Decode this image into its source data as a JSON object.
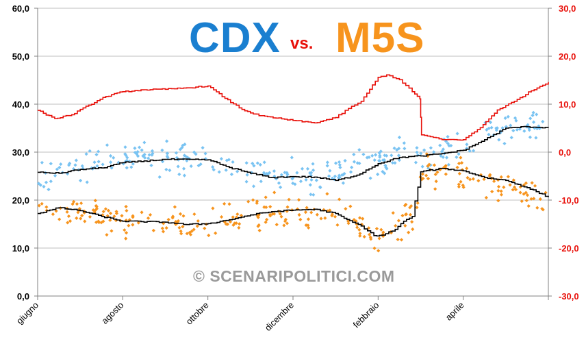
{
  "title": {
    "left": "CDX",
    "middle": "vs.",
    "right": "M5S"
  },
  "watermark": "© SCENARIPOLITICI.COM",
  "colors": {
    "cdx_points": "#79c3f2",
    "m5s_points": "#f7941d",
    "trend": "#000000",
    "diff": "#e8100a",
    "cdx_title": "#1a7fd0",
    "m5s_title": "#f7941d"
  },
  "chart_data": {
    "type": "scatter",
    "x_categories": [
      "giugno",
      "agosto",
      "ottobre",
      "dicembre",
      "febbraio",
      "aprile"
    ],
    "left_axis": {
      "ylim": [
        0,
        60
      ],
      "ticks": [
        "0,0",
        "10,0",
        "20,0",
        "30,0",
        "40,0",
        "50,0",
        "60,0"
      ]
    },
    "right_axis": {
      "ylim": [
        -30,
        30
      ],
      "ticks": [
        "-30,0",
        "-20,0",
        "-10,0",
        "0,0",
        "10,0",
        "20,0",
        "30,0"
      ]
    },
    "grid": true,
    "x_range_months": [
      0,
      12
    ],
    "series": [
      {
        "kind": "line",
        "axis": "left",
        "x": [
          0,
          0.5,
          1,
          1.5,
          2,
          3,
          4,
          4.5,
          5,
          5.5,
          6,
          6.5,
          7,
          7.5,
          8,
          8.5,
          9,
          9.5,
          10,
          10.5,
          11,
          11.5,
          12
        ],
        "y": [
          25.8,
          25.6,
          26.4,
          26.7,
          27.8,
          28.5,
          28.4,
          26.8,
          25.6,
          24.7,
          24.9,
          24.8,
          24.1,
          25.2,
          27.6,
          28.9,
          29.2,
          29.7,
          30.4,
          32.6,
          35.0,
          35.3,
          35.1
        ]
      },
      {
        "kind": "line",
        "axis": "left",
        "x": [
          0,
          0.5,
          1,
          1.5,
          2,
          3,
          3.5,
          4,
          4.5,
          5,
          5.5,
          6,
          6.5,
          7,
          7.2,
          7.6,
          7.9,
          8.1,
          8.4,
          8.6,
          8.8,
          9,
          9.5,
          10,
          10.5,
          11,
          11.5,
          12
        ],
        "y": [
          17.2,
          18.4,
          17.8,
          16.6,
          15.6,
          15.4,
          14.9,
          15.1,
          15.9,
          16.9,
          17.6,
          17.9,
          18.1,
          17.2,
          16.2,
          14.6,
          12.6,
          12.7,
          13.9,
          15.6,
          16.6,
          25.9,
          26.6,
          26.1,
          24.7,
          24.1,
          22.6,
          20.6
        ]
      },
      {
        "kind": "line",
        "axis": "right",
        "x": [
          0,
          0.4,
          0.8,
          1.2,
          1.6,
          2,
          2.5,
          3,
          3.5,
          4,
          4.4,
          4.8,
          5.2,
          5.6,
          6,
          6.5,
          7,
          7.3,
          7.6,
          7.8,
          8,
          8.2,
          8.5,
          8.8,
          8.98,
          9.02,
          9.5,
          10,
          10.4,
          10.8,
          11.2,
          11.6,
          12
        ],
        "y": [
          8.7,
          7.0,
          7.8,
          9.8,
          11.6,
          12.6,
          13.0,
          13.1,
          13.4,
          13.8,
          11.2,
          8.9,
          7.6,
          7.1,
          6.6,
          6.1,
          7.2,
          9.1,
          10.6,
          13.1,
          15.6,
          16.1,
          15.1,
          12.6,
          11.1,
          3.6,
          2.6,
          2.6,
          5.1,
          8.8,
          10.6,
          12.8,
          14.6
        ]
      },
      {
        "kind": "scatter",
        "axis": "left",
        "name": "cdx",
        "base_x": [
          0,
          1,
          2,
          3,
          4,
          5,
          6,
          7,
          7.5,
          8,
          8.5,
          9,
          9.5,
          10,
          10.5,
          11,
          12
        ],
        "base_y": [
          25,
          27,
          29,
          28.6,
          28.2,
          26,
          25,
          25.5,
          27,
          28.2,
          29.5,
          29.6,
          30.5,
          31,
          34,
          35.5,
          35
        ],
        "count": 300,
        "spread": 2.0
      },
      {
        "kind": "scatter",
        "axis": "left",
        "name": "m5s",
        "base_x": [
          0,
          1,
          2,
          3,
          4,
          5,
          6,
          7,
          7.5,
          7.9,
          8.2,
          8.5,
          8.9,
          9.1,
          9.5,
          10,
          10.5,
          11,
          12
        ],
        "base_y": [
          18,
          17.5,
          15.5,
          15,
          15,
          17,
          17.8,
          17.5,
          15,
          12.5,
          13,
          15,
          18,
          26.5,
          26,
          25,
          24,
          23,
          19
        ],
        "count": 300,
        "spread": 2.0
      }
    ]
  }
}
